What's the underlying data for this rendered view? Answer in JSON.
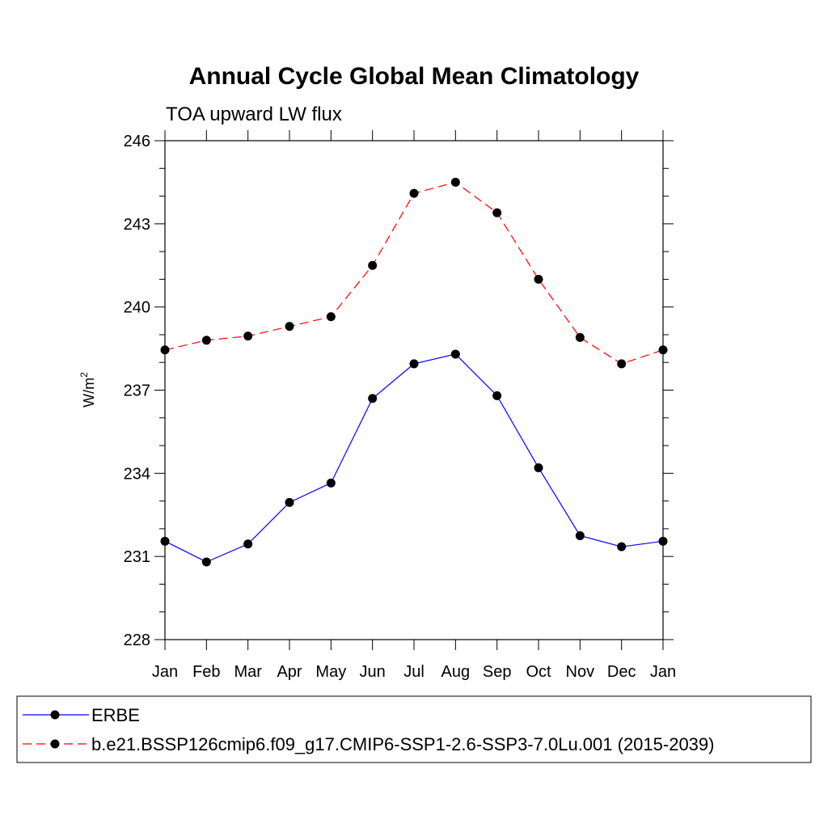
{
  "chart_data": {
    "type": "line",
    "title": "Annual Cycle Global Mean Climatology",
    "subtitle": "TOA upward LW flux",
    "ylabel": "W/m",
    "ylabel_superscript": "2",
    "categories": [
      "Jan",
      "Feb",
      "Mar",
      "Apr",
      "May",
      "Jun",
      "Jul",
      "Aug",
      "Sep",
      "Oct",
      "Nov",
      "Dec",
      "Jan"
    ],
    "ylim": [
      228,
      246
    ],
    "yticks": [
      228,
      231,
      234,
      237,
      240,
      243,
      246
    ],
    "grid": false,
    "legend_position": "bottom",
    "series": [
      {
        "name": "ERBE",
        "color": "#0000ff",
        "line_style": "solid",
        "marker": "filled-circle",
        "values": [
          231.55,
          230.8,
          231.45,
          232.95,
          233.65,
          236.7,
          237.95,
          238.3,
          236.8,
          234.2,
          231.75,
          231.35,
          231.55
        ]
      },
      {
        "name": "b.e21.BSSP126cmip6.f09_g17.CMIP6-SSP1-2.6-SSP3-7.0Lu.001 (2015-2039)",
        "color": "#ff0000",
        "line_style": "dashed",
        "marker": "filled-circle",
        "values": [
          238.45,
          238.8,
          238.95,
          239.3,
          239.65,
          241.5,
          244.1,
          244.5,
          243.4,
          241.0,
          238.9,
          237.95,
          238.45
        ]
      }
    ]
  }
}
